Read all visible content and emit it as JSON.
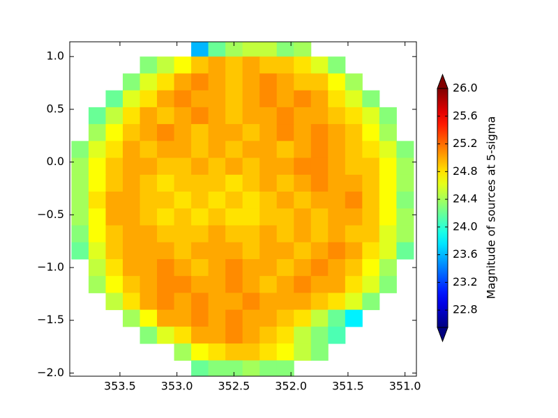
{
  "chart_data": {
    "type": "heatmap",
    "colormap": "jet",
    "x": [
      353.85,
      353.7,
      353.55,
      353.4,
      353.25,
      353.1,
      352.95,
      352.8,
      352.65,
      352.5,
      352.35,
      352.2,
      352.05,
      351.9,
      351.75,
      351.6,
      351.45,
      351.3,
      351.15,
      351.0
    ],
    "y": [
      1.08,
      0.92,
      0.76,
      0.6,
      0.44,
      0.28,
      0.12,
      -0.04,
      -0.2,
      -0.36,
      -0.52,
      -0.68,
      -0.84,
      -1.0,
      -1.16,
      -1.32,
      -1.48,
      -1.64,
      -1.8,
      -1.96
    ],
    "values": [
      [
        null,
        null,
        null,
        null,
        null,
        null,
        null,
        23.6,
        24.2,
        24.4,
        24.5,
        24.5,
        24.3,
        24.4,
        null,
        null,
        null,
        null,
        null,
        null
      ],
      [
        null,
        null,
        null,
        null,
        24.3,
        24.5,
        24.7,
        24.9,
        25,
        24.9,
        25,
        24.9,
        24.9,
        24.8,
        24.6,
        24.3,
        null,
        null,
        null,
        null
      ],
      [
        null,
        null,
        null,
        24.3,
        24.6,
        24.8,
        25,
        25.1,
        25,
        24.9,
        25,
        25.1,
        25,
        24.9,
        24.9,
        24.7,
        24.4,
        null,
        null,
        null
      ],
      [
        null,
        null,
        24.2,
        24.6,
        24.8,
        25,
        25.1,
        25,
        25,
        24.9,
        25,
        25.1,
        25,
        25.1,
        25,
        24.8,
        24.6,
        24.3,
        null,
        null
      ],
      [
        null,
        24.2,
        24.5,
        24.8,
        25,
        24.9,
        25,
        25.1,
        25,
        24.9,
        25,
        25,
        25.1,
        25,
        25,
        24.9,
        24.8,
        24.6,
        24.3,
        null
      ],
      [
        null,
        24.4,
        24.7,
        24.9,
        25,
        25.1,
        25,
        24.9,
        25,
        25,
        24.9,
        25,
        25.1,
        25,
        25.1,
        25,
        24.9,
        24.7,
        24.4,
        null
      ],
      [
        24.3,
        24.6,
        24.8,
        25,
        24.9,
        25,
        25,
        24.9,
        25,
        24.9,
        25,
        25,
        24.9,
        25,
        25.1,
        25,
        24.9,
        24.8,
        24.6,
        24.3
      ],
      [
        24.4,
        24.7,
        24.9,
        25,
        25,
        24.9,
        24.9,
        25,
        24.9,
        25,
        24.9,
        25,
        25,
        25.1,
        25.1,
        25,
        24.9,
        24.9,
        24.7,
        24.4
      ],
      [
        24.4,
        24.7,
        24.9,
        25,
        24.9,
        24.8,
        24.9,
        24.9,
        24.9,
        24.8,
        24.9,
        25,
        24.9,
        25,
        25.1,
        25,
        25,
        24.9,
        24.7,
        24.4
      ],
      [
        24.4,
        24.8,
        25,
        25,
        24.9,
        24.9,
        24.8,
        24.9,
        24.8,
        24.9,
        24.8,
        24.9,
        25,
        24.9,
        25,
        25,
        25.1,
        24.9,
        24.7,
        24.3
      ],
      [
        24.4,
        24.7,
        25,
        25,
        24.9,
        24.8,
        24.9,
        24.8,
        24.9,
        24.8,
        24.8,
        24.9,
        24.9,
        25,
        24.9,
        25,
        25,
        24.9,
        24.7,
        24.4
      ],
      [
        24.3,
        24.7,
        24.9,
        25,
        25,
        24.9,
        24.9,
        24.9,
        25,
        24.9,
        24.9,
        25,
        24.9,
        25,
        24.9,
        25,
        24.9,
        24.9,
        24.6,
        24.4
      ],
      [
        24.2,
        24.6,
        24.9,
        25,
        25,
        25,
        24.9,
        25,
        25,
        25,
        24.9,
        25,
        25,
        24.9,
        25,
        25.1,
        25,
        24.8,
        24.6,
        24.2
      ],
      [
        null,
        24.5,
        24.8,
        25,
        25,
        25.1,
        25,
        24.9,
        25,
        25.1,
        25,
        25,
        24.9,
        25,
        25.1,
        25,
        24.9,
        24.7,
        24.4,
        null
      ],
      [
        null,
        24.4,
        24.7,
        24.9,
        25,
        25.1,
        25.1,
        25,
        25,
        25.1,
        25,
        24.9,
        25,
        25.1,
        25,
        25,
        24.8,
        24.6,
        24.3,
        null
      ],
      [
        null,
        null,
        24.5,
        24.8,
        25,
        25.1,
        25,
        25.1,
        25,
        25,
        25.1,
        25,
        25,
        25,
        24.9,
        24.8,
        24.6,
        24.3,
        null,
        null
      ],
      [
        null,
        null,
        null,
        24.4,
        24.7,
        25,
        25,
        25.1,
        25,
        25.1,
        25,
        25,
        24.9,
        24.8,
        24.5,
        24.2,
        23.8,
        null,
        null,
        null
      ],
      [
        null,
        null,
        null,
        null,
        24.3,
        24.6,
        24.8,
        25,
        25,
        25.1,
        25,
        24.9,
        24.8,
        24.5,
        24.3,
        24.1,
        null,
        null,
        null,
        null
      ],
      [
        null,
        null,
        null,
        null,
        null,
        null,
        24.4,
        24.7,
        24.8,
        24.9,
        24.9,
        24.8,
        24.7,
        24.5,
        24.3,
        null,
        null,
        null,
        null,
        null
      ],
      [
        null,
        null,
        null,
        null,
        null,
        null,
        null,
        24.2,
        24.3,
        24.3,
        24.4,
        24.3,
        24.3,
        null,
        null,
        null,
        null,
        null,
        null,
        null
      ]
    ],
    "xlim": [
      353.94,
      350.9
    ],
    "ylim": [
      -2.03,
      1.14
    ],
    "xticks": [
      353.5,
      {
        "value": 353,
        "label": "353.0"
      },
      352.5,
      {
        "value": 352,
        "label": "352.0"
      },
      351.5,
      {
        "value": 351,
        "label": "351.0"
      }
    ],
    "yticks": [
      {
        "value": 1,
        "label": "1.0"
      },
      0.5,
      {
        "value": 0,
        "label": "0.0"
      },
      {
        "value": -0.5,
        "label": "−0.5"
      },
      {
        "value": -1,
        "label": "−1.0"
      },
      {
        "value": -1.5,
        "label": "−1.5"
      },
      {
        "value": -2,
        "label": "−2.0"
      }
    ],
    "clim": [
      22.55,
      26
    ],
    "colorbar_extend": "both",
    "colorbar_ticks": [
      22.8,
      {
        "value": 23.2,
        "label": "23.2"
      },
      {
        "value": 23.6,
        "label": "23.6"
      },
      {
        "value": 24,
        "label": "24.0"
      },
      24.4,
      24.8,
      25.2,
      25.6,
      {
        "value": 26,
        "label": "26.0"
      }
    ],
    "colorbar_label": "Magnitude of sources at 5-sigma"
  }
}
